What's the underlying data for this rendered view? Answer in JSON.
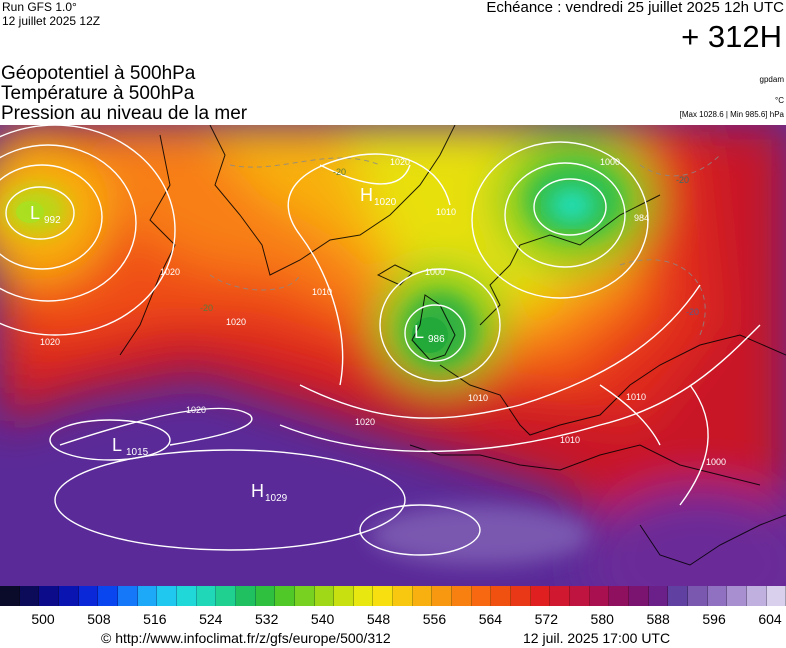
{
  "header": {
    "run": "Run GFS 1.0°",
    "run_date": "12 juillet 2025 12Z",
    "echeance": "Echéance : vendredi 25 juillet 2025 12h UTC",
    "lead": "+ 312H"
  },
  "fields": {
    "geopotential": "Géopotentiel à 500hPa",
    "temperature": "Température à 500hPa",
    "pressure": "Pression au niveau de la mer"
  },
  "units": {
    "geopotential": "gpdam",
    "temperature": "°C",
    "pressure": "[Max 1028.6 | Min 985.6] hPa"
  },
  "map": {
    "pressure_centers": [
      {
        "type": "L",
        "value": "992"
      },
      {
        "type": "H",
        "value": "1020"
      },
      {
        "type": "L",
        "value": "986"
      },
      {
        "type": "L",
        "value": "1015"
      },
      {
        "type": "H",
        "value": "1029"
      }
    ],
    "isobar_labels": [
      "1020",
      "1010",
      "1000",
      "1020",
      "1020",
      "1010",
      "1010",
      "1000",
      "1020",
      "1010",
      "1010",
      "1000",
      "984",
      "1020",
      "1020"
    ],
    "temperature_labels": [
      "-20",
      "-20",
      "-20",
      "-20"
    ]
  },
  "colorbar": {
    "tick_labels": [
      "500",
      "508",
      "516",
      "524",
      "532",
      "540",
      "548",
      "556",
      "564",
      "572",
      "580",
      "588",
      "596",
      "604"
    ],
    "colors": [
      "#0a0a2a",
      "#0b0b5a",
      "#0c0c8a",
      "#0a14b0",
      "#0a28d8",
      "#0a46f0",
      "#1478f8",
      "#1ea8f8",
      "#20c8f0",
      "#20d8d8",
      "#20d8b8",
      "#20d090",
      "#20c060",
      "#30c040",
      "#50c828",
      "#78d020",
      "#a0d818",
      "#c8e010",
      "#e8e810",
      "#f8e010",
      "#f8c810",
      "#f8b010",
      "#f89810",
      "#f88010",
      "#f86810",
      "#f05010",
      "#e83818",
      "#e02020",
      "#d01830",
      "#c01440",
      "#a81050",
      "#901060",
      "#7a1470",
      "#6a2088",
      "#6040a0",
      "#7a58b0",
      "#9070c0",
      "#a890d0",
      "#c0b0e0",
      "#d8d0ec"
    ]
  },
  "footer": {
    "credit": "© http://www.infoclimat.fr/z/gfs/europe/500/312",
    "generated": "12 juil. 2025 17:00 UTC"
  }
}
